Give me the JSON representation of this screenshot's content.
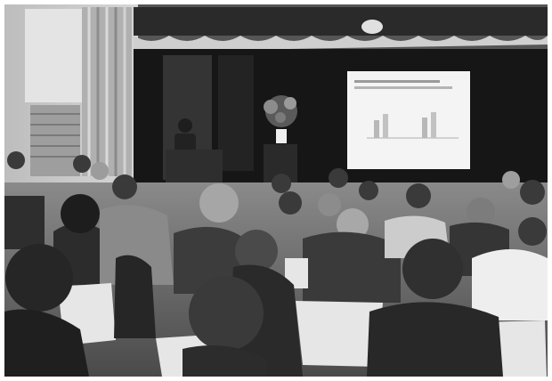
{
  "image": {
    "kind": "photograph",
    "tone": "grayscale",
    "colors": {
      "border": "#ffffff",
      "stage_curtain": "#1a1a1a",
      "screen": "#f4f4f4",
      "wall": "#c8c8c8",
      "floor": "#6a6a6a",
      "chair_back": "#e6e6e6"
    }
  }
}
